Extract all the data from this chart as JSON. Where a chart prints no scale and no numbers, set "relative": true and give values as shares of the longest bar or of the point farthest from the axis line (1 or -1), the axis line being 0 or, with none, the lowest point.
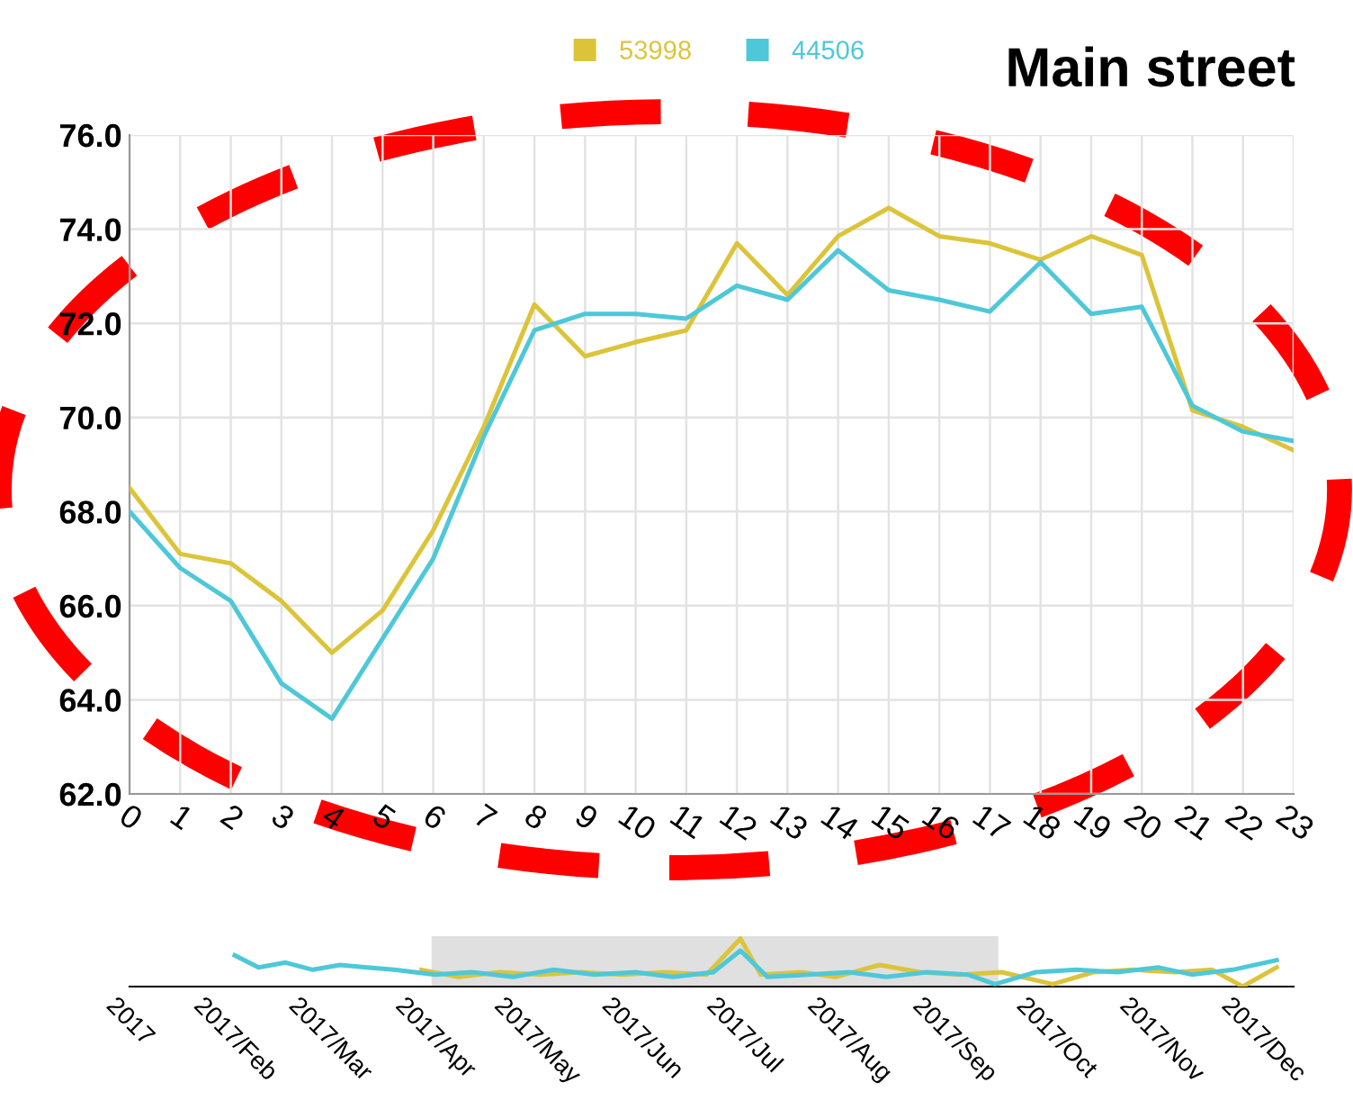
{
  "chart_data": [
    {
      "type": "line",
      "title": "Main street",
      "x": [
        0,
        1,
        2,
        3,
        4,
        5,
        6,
        7,
        8,
        9,
        10,
        11,
        12,
        13,
        14,
        15,
        16,
        17,
        18,
        19,
        20,
        21,
        22,
        23
      ],
      "series": [
        {
          "name": "53998",
          "color": "#dcc43a",
          "values": [
            68.5,
            67.1,
            66.9,
            66.1,
            65.0,
            65.9,
            67.6,
            69.8,
            72.4,
            71.3,
            71.6,
            71.85,
            73.7,
            72.6,
            73.85,
            74.45,
            73.85,
            73.7,
            73.35,
            73.85,
            73.45,
            70.15,
            69.8,
            69.3
          ]
        },
        {
          "name": "44506",
          "color": "#4ec8d8",
          "values": [
            68.0,
            66.8,
            66.1,
            64.35,
            63.6,
            65.3,
            67.0,
            69.6,
            71.85,
            72.2,
            72.2,
            72.1,
            72.8,
            72.5,
            73.55,
            72.7,
            72.5,
            72.25,
            73.3,
            72.2,
            72.35,
            70.25,
            69.7,
            69.5
          ]
        }
      ],
      "xlim": [
        0,
        23
      ],
      "xticks": [
        0,
        1,
        2,
        3,
        4,
        5,
        6,
        7,
        8,
        9,
        10,
        11,
        12,
        13,
        14,
        15,
        16,
        17,
        18,
        19,
        20,
        21,
        22,
        23
      ],
      "ylim": [
        62,
        76
      ],
      "yticks": [
        {
          "value": 62,
          "label": "62.0"
        },
        {
          "value": 64,
          "label": "64.0"
        },
        {
          "value": 66,
          "label": "66.0"
        },
        {
          "value": 68,
          "label": "68.0"
        },
        {
          "value": 70,
          "label": "70.0"
        },
        {
          "value": 72,
          "label": "72.0"
        },
        {
          "value": 74,
          "label": "74.0"
        },
        {
          "value": 76,
          "label": "76.0"
        }
      ],
      "grid": true,
      "legend": "top",
      "marker": "none",
      "line_style": "solid"
    },
    {
      "type": "line",
      "relative": true,
      "tick_labels": "x",
      "series": [
        {
          "color": "#dcc43a",
          "x": [
            "2017-03-28",
            "2017-04-08",
            "2017-04-20",
            "2017-05-02",
            "2017-05-14",
            "2017-05-26",
            "2017-06-08",
            "2017-06-20",
            "2017-06-30",
            "2017-07-06",
            "2017-07-18",
            "2017-07-28",
            "2017-08-10",
            "2017-08-22",
            "2017-09-03",
            "2017-09-15",
            "2017-09-30",
            "2017-10-12",
            "2017-10-24",
            "2017-11-05",
            "2017-11-16",
            "2017-11-25",
            "2017-12-05"
          ],
          "values": [
            0.35,
            0.2,
            0.3,
            0.25,
            0.3,
            0.25,
            0.3,
            0.25,
            1.0,
            0.25,
            0.3,
            0.2,
            0.45,
            0.3,
            0.25,
            0.3,
            0.05,
            0.3,
            0.35,
            0.3,
            0.35,
            0.0,
            0.4
          ]
        },
        {
          "color": "#4ec8d8",
          "x": [
            "2017-02-01",
            "2017-02-08",
            "2017-02-16",
            "2017-02-24",
            "2017-03-04",
            "2017-03-12",
            "2017-03-20",
            "2017-04-01",
            "2017-04-12",
            "2017-04-24",
            "2017-05-06",
            "2017-05-18",
            "2017-05-30",
            "2017-06-10",
            "2017-06-22",
            "2017-06-30",
            "2017-07-08",
            "2017-07-20",
            "2017-08-01",
            "2017-08-12",
            "2017-08-24",
            "2017-09-05",
            "2017-09-13",
            "2017-09-25",
            "2017-10-07",
            "2017-10-19",
            "2017-10-31",
            "2017-11-10",
            "2017-11-22",
            "2017-12-05"
          ],
          "values": [
            0.65,
            0.4,
            0.5,
            0.35,
            0.45,
            0.4,
            0.35,
            0.25,
            0.3,
            0.2,
            0.35,
            0.25,
            0.3,
            0.2,
            0.3,
            0.75,
            0.2,
            0.25,
            0.3,
            0.2,
            0.3,
            0.25,
            0.05,
            0.3,
            0.35,
            0.3,
            0.4,
            0.25,
            0.35,
            0.55
          ]
        }
      ],
      "xlim": [
        "2017-01-01",
        "2017-12-10"
      ],
      "xticks": [
        {
          "value": "2017-01-01",
          "label": "2017"
        },
        {
          "value": "2017-02-01",
          "label": "2017/Feb"
        },
        {
          "value": "2017-03-01",
          "label": "2017/Mar"
        },
        {
          "value": "2017-04-01",
          "label": "2017/Apr"
        },
        {
          "value": "2017-05-01",
          "label": "2017/May"
        },
        {
          "value": "2017-06-01",
          "label": "2017/Jun"
        },
        {
          "value": "2017-07-01",
          "label": "2017/Jul"
        },
        {
          "value": "2017-08-01",
          "label": "2017/Aug"
        },
        {
          "value": "2017-09-01",
          "label": "2017/Sep"
        },
        {
          "value": "2017-10-01",
          "label": "2017/Oct"
        },
        {
          "value": "2017-11-01",
          "label": "2017/Nov"
        },
        {
          "value": "2017-12-01",
          "label": "2017/Dec"
        }
      ],
      "bands": [
        {
          "axis": "x",
          "from": "2017-03-31",
          "to": "2017-09-14",
          "color": "#d8d8d8"
        }
      ],
      "grid": false,
      "legend": false,
      "marker": "none",
      "line_style": "solid"
    }
  ]
}
